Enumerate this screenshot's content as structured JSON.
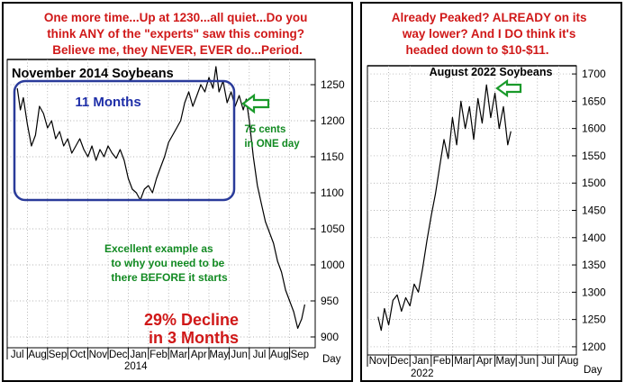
{
  "panels": [
    {
      "id": "left",
      "headline_lines": [
        "One more time...Up at 1230...all quiet...Do you",
        "think ANY of the \"experts\" saw this coming?",
        "Believe me, they NEVER, EVER do...Period."
      ],
      "annotations": {
        "box_label": "11 Months",
        "move_lines": [
          "75 cents",
          "in ONE day"
        ],
        "lesson_lines": [
          "Excellent example as",
          "to why you need to be",
          "there BEFORE it starts"
        ],
        "decline_lines": [
          "29% Decline",
          "in 3 Months"
        ]
      },
      "chart_data": {
        "type": "line",
        "title": "November 2014 Soybeans",
        "x_unit_label": "Day",
        "x_tick_labels": [
          "Jul",
          "Aug",
          "Sep",
          "Oct",
          "Nov",
          "Dec",
          "Jan",
          "Feb",
          "Mar",
          "Apr",
          "May",
          "Jun",
          "Jul",
          "Aug",
          "Sep"
        ],
        "year_label": "2014",
        "ylim": [
          885,
          1285
        ],
        "y_ticks": [
          900,
          950,
          1000,
          1050,
          1100,
          1150,
          1200,
          1250
        ],
        "grid": true,
        "series": [
          {
            "x": [
              0.0,
              0.15,
              0.3,
              0.5,
              0.7,
              0.9,
              1.1,
              1.3,
              1.5,
              1.7,
              1.9,
              2.1,
              2.3,
              2.5,
              2.7,
              2.9,
              3.1,
              3.3,
              3.5,
              3.7,
              3.9,
              4.1,
              4.3,
              4.5,
              4.7,
              4.9,
              5.1,
              5.3,
              5.5,
              5.7,
              5.9,
              6.1,
              6.3,
              6.5,
              6.7,
              6.9,
              7.1,
              7.3,
              7.5,
              7.7,
              7.9,
              8.1,
              8.3,
              8.5,
              8.7,
              8.9,
              9.1,
              9.3,
              9.5,
              9.7,
              9.85,
              10.0,
              10.2,
              10.4,
              10.6,
              10.8,
              11.0,
              11.2,
              11.35,
              11.5,
              11.7,
              11.9,
              12.1,
              12.3,
              12.5,
              12.7,
              12.9,
              13.1,
              13.3,
              13.5,
              13.7,
              13.9,
              14.1,
              14.25
            ],
            "y": [
              1245,
              1215,
              1232,
              1195,
              1165,
              1180,
              1220,
              1210,
              1190,
              1200,
              1175,
              1185,
              1165,
              1175,
              1155,
              1165,
              1175,
              1160,
              1150,
              1165,
              1145,
              1160,
              1150,
              1165,
              1155,
              1148,
              1160,
              1145,
              1120,
              1105,
              1100,
              1090,
              1105,
              1110,
              1100,
              1120,
              1135,
              1150,
              1170,
              1180,
              1190,
              1200,
              1225,
              1240,
              1220,
              1235,
              1250,
              1240,
              1260,
              1245,
              1275,
              1240,
              1255,
              1225,
              1240,
              1220,
              1235,
              1215,
              1230,
              1200,
              1150,
              1110,
              1085,
              1060,
              1045,
              1030,
              1005,
              990,
              965,
              950,
              935,
              912,
              925,
              945
            ]
          }
        ]
      }
    },
    {
      "id": "right",
      "headline_lines": [
        "Already Peaked? ALREADY on its",
        "way lower? And I DO think it's",
        "headed down to $10-$11."
      ],
      "chart_data": {
        "type": "line",
        "title": "August 2022 Soybeans",
        "x_unit_label": "Day",
        "x_tick_labels": [
          "Nov",
          "Dec",
          "Jan",
          "Feb",
          "Mar",
          "Apr",
          "May",
          "Jun",
          "Jul",
          "Aug"
        ],
        "year_label": "2022",
        "ylim": [
          1185,
          1715
        ],
        "y_ticks": [
          1200,
          1250,
          1300,
          1350,
          1400,
          1450,
          1500,
          1550,
          1600,
          1650,
          1700
        ],
        "grid": true,
        "series": [
          {
            "x": [
              0.0,
              0.15,
              0.3,
              0.5,
              0.7,
              0.9,
              1.1,
              1.3,
              1.5,
              1.7,
              1.9,
              2.1,
              2.3,
              2.5,
              2.7,
              2.9,
              3.1,
              3.3,
              3.5,
              3.7,
              3.9,
              4.1,
              4.3,
              4.5,
              4.7,
              4.9,
              5.1,
              5.3,
              5.5,
              5.7,
              5.9,
              6.1,
              6.25
            ],
            "y": [
              1255,
              1230,
              1270,
              1240,
              1285,
              1295,
              1265,
              1290,
              1275,
              1315,
              1300,
              1345,
              1395,
              1440,
              1480,
              1530,
              1580,
              1545,
              1620,
              1570,
              1650,
              1600,
              1640,
              1580,
              1655,
              1610,
              1680,
              1620,
              1665,
              1600,
              1640,
              1570,
              1595
            ]
          }
        ]
      }
    }
  ]
}
